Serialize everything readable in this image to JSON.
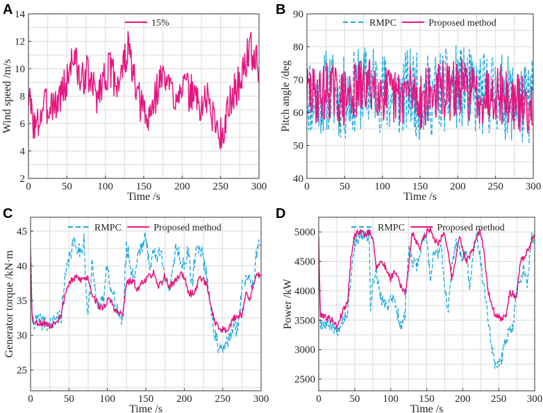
{
  "colors": {
    "primary": "#e6157f",
    "rmpc": "#1aa7e0",
    "grid": "#d9d9d9",
    "axis": "#333333",
    "background": "#ffffff"
  },
  "chart_data": [
    {
      "type": "line",
      "panel_label": "A",
      "title": "",
      "xlabel": "Time /s",
      "ylabel": "Wind speed /m/s",
      "xlim": [
        0,
        300
      ],
      "ylim": [
        2,
        14
      ],
      "xticks": [
        0,
        50,
        100,
        150,
        200,
        250,
        300
      ],
      "yticks": [
        2,
        4,
        6,
        8,
        10,
        12,
        14
      ],
      "minor_grid": true,
      "legend": "top-center",
      "series": [
        {
          "name": "15%",
          "style": "solid",
          "color_key": "primary",
          "noise": 1.4,
          "noise_seed": 3,
          "x": [
            0,
            5,
            10,
            15,
            20,
            25,
            30,
            35,
            40,
            45,
            50,
            55,
            60,
            65,
            70,
            75,
            80,
            85,
            90,
            95,
            100,
            105,
            110,
            115,
            120,
            125,
            130,
            135,
            140,
            145,
            150,
            155,
            160,
            165,
            170,
            175,
            180,
            185,
            190,
            195,
            200,
            205,
            210,
            215,
            220,
            225,
            230,
            235,
            240,
            245,
            250,
            255,
            260,
            265,
            270,
            275,
            280,
            285,
            290,
            295,
            300
          ],
          "y": [
            8.0,
            6.5,
            5.5,
            6.5,
            7.5,
            7.0,
            7.8,
            7.2,
            8.0,
            8.5,
            9.0,
            10.5,
            11.0,
            9.5,
            9.0,
            10.0,
            9.0,
            8.5,
            8.0,
            9.0,
            9.5,
            10.0,
            9.5,
            9.0,
            9.5,
            10.5,
            11.5,
            10.0,
            8.0,
            7.5,
            7.0,
            6.0,
            7.0,
            8.0,
            9.0,
            9.5,
            9.0,
            8.5,
            8.0,
            8.5,
            9.0,
            8.5,
            8.0,
            8.5,
            7.5,
            7.0,
            8.0,
            7.5,
            6.5,
            6.0,
            5.0,
            6.0,
            7.0,
            8.0,
            8.5,
            9.0,
            10.0,
            11.0,
            11.5,
            10.5,
            10.0
          ]
        }
      ]
    },
    {
      "type": "line",
      "panel_label": "B",
      "title": "",
      "xlabel": "Time /s",
      "ylabel": "Pitch angle /deg",
      "xlim": [
        0,
        300
      ],
      "ylim": [
        40,
        90
      ],
      "xticks": [
        0,
        50,
        100,
        150,
        200,
        250,
        300
      ],
      "yticks": [
        40,
        50,
        60,
        70,
        80,
        90
      ],
      "minor_grid": true,
      "legend": "top-center",
      "series": [
        {
          "name": "RMPC",
          "style": "dashed",
          "color_key": "rmpc",
          "noise": 13,
          "noise_seed": 11,
          "x": [
            0,
            10,
            20,
            30,
            40,
            50,
            60,
            70,
            80,
            90,
            100,
            110,
            120,
            130,
            140,
            150,
            160,
            170,
            180,
            190,
            200,
            210,
            220,
            230,
            240,
            250,
            260,
            270,
            280,
            290,
            300
          ],
          "y": [
            66,
            65,
            66,
            67,
            65,
            64,
            66,
            67,
            68,
            69,
            66,
            65,
            64,
            66,
            67,
            64,
            65,
            66,
            67,
            66,
            68,
            67,
            66,
            65,
            66,
            67,
            65,
            64,
            63,
            62,
            64
          ]
        },
        {
          "name": "Proposed method",
          "style": "solid",
          "color_key": "primary",
          "noise": 9,
          "noise_seed": 29,
          "x": [
            0,
            10,
            20,
            30,
            40,
            50,
            60,
            70,
            80,
            90,
            100,
            110,
            120,
            130,
            140,
            150,
            160,
            170,
            180,
            190,
            200,
            210,
            220,
            230,
            240,
            250,
            260,
            270,
            280,
            290,
            300
          ],
          "y": [
            66,
            65,
            66,
            67,
            65,
            64,
            66,
            67,
            68,
            69,
            66,
            65,
            64,
            66,
            67,
            64,
            65,
            66,
            67,
            66,
            68,
            67,
            66,
            65,
            66,
            67,
            65,
            64,
            63,
            62,
            64
          ]
        }
      ]
    },
    {
      "type": "line",
      "panel_label": "C",
      "title": "",
      "xlabel": "Time /s",
      "ylabel": "Generator torque /kN·m",
      "xlim": [
        0,
        300
      ],
      "ylim": [
        22,
        47
      ],
      "xticks": [
        0,
        50,
        100,
        150,
        200,
        250,
        300
      ],
      "yticks": [
        25,
        30,
        35,
        40,
        45
      ],
      "minor_grid": true,
      "legend": "top-center",
      "series": [
        {
          "name": "RMPC",
          "style": "dashed",
          "color_key": "rmpc",
          "noise": 1.2,
          "noise_seed": 41,
          "x": [
            0,
            2,
            5,
            10,
            20,
            25,
            30,
            35,
            40,
            45,
            50,
            55,
            60,
            65,
            70,
            72,
            75,
            80,
            85,
            90,
            95,
            100,
            105,
            110,
            115,
            120,
            125,
            130,
            135,
            140,
            145,
            150,
            155,
            160,
            165,
            170,
            175,
            180,
            185,
            190,
            195,
            200,
            205,
            210,
            215,
            220,
            225,
            230,
            235,
            240,
            245,
            250,
            255,
            260,
            265,
            270,
            275,
            280,
            285,
            290,
            295,
            300
          ],
          "y": [
            43,
            32.5,
            32,
            32,
            31.8,
            31.5,
            32,
            32.5,
            33,
            38,
            41,
            43,
            43,
            42,
            44,
            36,
            33,
            40,
            36,
            34,
            35,
            41,
            36,
            35,
            33,
            32,
            43,
            40,
            38,
            42,
            43,
            44,
            40,
            42,
            41,
            43,
            38,
            36,
            40,
            43,
            41,
            40,
            42,
            37,
            42,
            43,
            41,
            38,
            34,
            30,
            28,
            27.5,
            29,
            30,
            31,
            31,
            37,
            38,
            39,
            37,
            43,
            42
          ]
        },
        {
          "name": "Proposed method",
          "style": "solid",
          "color_key": "primary",
          "noise": 0.5,
          "noise_seed": 53,
          "x": [
            0,
            2,
            5,
            10,
            20,
            25,
            30,
            35,
            40,
            45,
            50,
            55,
            60,
            65,
            70,
            75,
            80,
            85,
            90,
            95,
            100,
            105,
            110,
            115,
            120,
            125,
            130,
            135,
            140,
            145,
            150,
            155,
            160,
            165,
            170,
            175,
            180,
            185,
            190,
            195,
            200,
            205,
            210,
            215,
            220,
            225,
            230,
            235,
            240,
            245,
            250,
            255,
            260,
            265,
            270,
            275,
            280,
            285,
            290,
            295,
            300
          ],
          "y": [
            42,
            32.2,
            32,
            31.8,
            31.7,
            31.2,
            31.8,
            32.3,
            33,
            36,
            37.5,
            38,
            38.3,
            38,
            38.2,
            38.3,
            36,
            35,
            34,
            34,
            35,
            35,
            33.5,
            33.2,
            33,
            37.5,
            37.8,
            37.5,
            36.5,
            37.8,
            38,
            38.5,
            39,
            37,
            37.5,
            38.5,
            37,
            37.5,
            38,
            39,
            38.5,
            36,
            36,
            36.5,
            38.5,
            38,
            37,
            34,
            32,
            31,
            30.8,
            30.8,
            31.5,
            32.5,
            32.8,
            33,
            36,
            35,
            37,
            39,
            38.5
          ]
        }
      ]
    },
    {
      "type": "line",
      "panel_label": "D",
      "title": "",
      "xlabel": "Time /s",
      "ylabel": "Power /kW",
      "xlim": [
        0,
        300
      ],
      "ylim": [
        2300,
        5250
      ],
      "xticks": [
        0,
        50,
        100,
        150,
        200,
        250,
        300
      ],
      "yticks": [
        2500,
        3000,
        3500,
        4000,
        4500,
        5000
      ],
      "minor_grid": true,
      "legend": "top-center",
      "series": [
        {
          "name": "RMPC",
          "style": "dashed",
          "color_key": "rmpc",
          "noise": 110,
          "noise_seed": 67,
          "x": [
            0,
            2,
            5,
            10,
            20,
            25,
            30,
            35,
            40,
            45,
            50,
            55,
            60,
            65,
            70,
            72,
            75,
            80,
            85,
            90,
            95,
            100,
            105,
            110,
            115,
            120,
            125,
            130,
            135,
            140,
            145,
            150,
            155,
            160,
            165,
            170,
            175,
            180,
            185,
            190,
            195,
            200,
            205,
            210,
            215,
            220,
            225,
            230,
            235,
            240,
            245,
            250,
            255,
            260,
            265,
            270,
            275,
            280,
            285,
            290,
            295,
            300
          ],
          "y": [
            4950,
            3450,
            3450,
            3450,
            3420,
            3300,
            3450,
            3550,
            3650,
            4300,
            4800,
            4900,
            4950,
            4900,
            4950,
            3600,
            4100,
            4350,
            3900,
            3800,
            3700,
            3950,
            3800,
            3600,
            3400,
            3600,
            4700,
            4500,
            4400,
            4600,
            4900,
            4950,
            4200,
            4700,
            4600,
            4800,
            4000,
            3700,
            4400,
            4800,
            4700,
            4500,
            4700,
            4000,
            4700,
            4900,
            4500,
            4000,
            3600,
            3100,
            2750,
            2700,
            2900,
            3200,
            3300,
            3400,
            4100,
            4200,
            4400,
            4100,
            4900,
            4850
          ]
        },
        {
          "name": "Proposed method",
          "style": "solid",
          "color_key": "primary",
          "noise": 55,
          "noise_seed": 79,
          "x": [
            0,
            2,
            5,
            10,
            20,
            25,
            30,
            35,
            40,
            45,
            50,
            55,
            60,
            65,
            70,
            75,
            80,
            85,
            90,
            95,
            100,
            105,
            110,
            115,
            120,
            125,
            130,
            135,
            140,
            145,
            150,
            155,
            160,
            165,
            170,
            175,
            180,
            185,
            190,
            195,
            200,
            205,
            210,
            215,
            220,
            225,
            230,
            235,
            240,
            245,
            250,
            255,
            260,
            265,
            270,
            275,
            280,
            285,
            290,
            295,
            300
          ],
          "y": [
            4950,
            3600,
            3600,
            3550,
            3500,
            3380,
            3550,
            3700,
            3800,
            4600,
            4950,
            5000,
            5000,
            4950,
            5000,
            4900,
            4400,
            4500,
            4450,
            4350,
            4200,
            4350,
            4250,
            4050,
            3950,
            4400,
            5000,
            4850,
            4700,
            4900,
            5000,
            5050,
            4900,
            4800,
            4900,
            5000,
            4600,
            4200,
            4500,
            4950,
            4700,
            4500,
            4600,
            4700,
            4950,
            5000,
            4650,
            4000,
            3800,
            3600,
            3550,
            3500,
            3600,
            3950,
            3950,
            3900,
            4500,
            4550,
            4700,
            4800,
            5000
          ]
        }
      ]
    }
  ]
}
